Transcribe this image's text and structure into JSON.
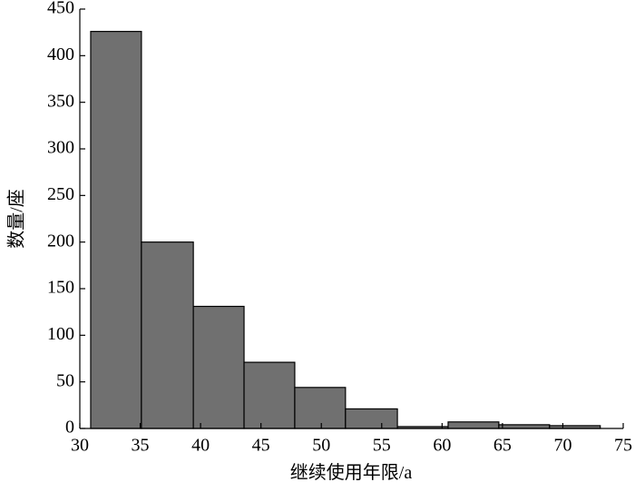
{
  "chart_data": {
    "type": "histogram",
    "xlabel": "继续使用年限/a",
    "ylabel": "数量/座",
    "bins": [
      30.9,
      35.1,
      39.4,
      43.6,
      47.8,
      52.0,
      56.3,
      60.5,
      64.7,
      68.9,
      73.1
    ],
    "values": [
      426,
      200,
      131,
      71,
      44,
      21,
      2,
      7,
      4,
      3
    ],
    "color": "#707070",
    "xlim": [
      30,
      75
    ],
    "xticks": [
      30,
      35,
      40,
      45,
      50,
      55,
      60,
      65,
      70,
      75
    ],
    "ylim": [
      0,
      450
    ],
    "yticks": [
      0,
      50,
      100,
      150,
      200,
      250,
      300,
      350,
      400,
      450
    ]
  }
}
